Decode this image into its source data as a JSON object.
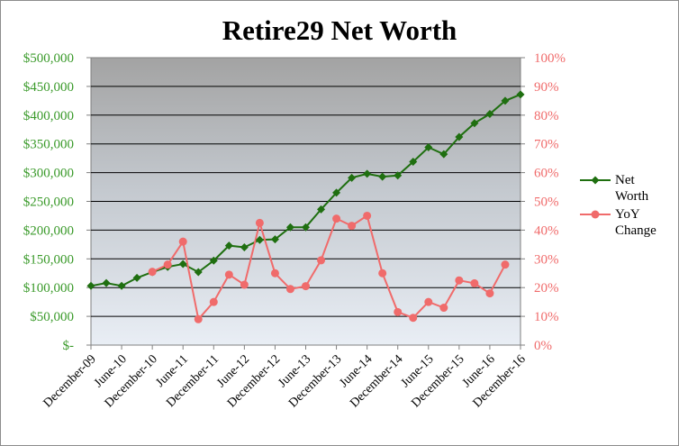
{
  "chart_data": {
    "type": "line",
    "title": "Retire29 Net Worth",
    "x_tick_labels": [
      "December-09",
      "June-10",
      "December-10",
      "June-11",
      "December-11",
      "June-12",
      "December-12",
      "June-13",
      "December-13",
      "June-14",
      "December-14",
      "June-15",
      "December-15",
      "June-16",
      "December-16"
    ],
    "y_left": {
      "ticks": [
        "$-",
        "$50,000",
        "$100,000",
        "$150,000",
        "$200,000",
        "$250,000",
        "$300,000",
        "$350,000",
        "$400,000",
        "$450,000",
        "$500,000"
      ],
      "ylim": [
        0,
        500000
      ]
    },
    "y_right": {
      "ticks": [
        "0%",
        "10%",
        "20%",
        "30%",
        "40%",
        "50%",
        "60%",
        "70%",
        "80%",
        "90%",
        "100%"
      ],
      "ylim": [
        0,
        1
      ]
    },
    "grid": true,
    "legend_position": "right",
    "series": [
      {
        "name": "Net Worth",
        "axis": "left",
        "color": "#1f6f10",
        "marker": "diamond",
        "values": [
          {
            "i": 0,
            "y": 103000
          },
          {
            "i": 1,
            "y": 108000
          },
          {
            "i": 2,
            "y": 103000
          },
          {
            "i": 3,
            "y": 117000
          },
          {
            "i": 4,
            "y": 127000
          },
          {
            "i": 5,
            "y": 136000
          },
          {
            "i": 6,
            "y": 141000
          },
          {
            "i": 7,
            "y": 127000
          },
          {
            "i": 8,
            "y": 147000
          },
          {
            "i": 9,
            "y": 173000
          },
          {
            "i": 10,
            "y": 170000
          },
          {
            "i": 11,
            "y": 183000
          },
          {
            "i": 12,
            "y": 184000
          },
          {
            "i": 13,
            "y": 205000
          },
          {
            "i": 14,
            "y": 205000
          },
          {
            "i": 15,
            "y": 236000
          },
          {
            "i": 16,
            "y": 265000
          },
          {
            "i": 17,
            "y": 291000
          },
          {
            "i": 18,
            "y": 298000
          },
          {
            "i": 19,
            "y": 293000
          },
          {
            "i": 20,
            "y": 295000
          },
          {
            "i": 21,
            "y": 319000
          },
          {
            "i": 22,
            "y": 344000
          },
          {
            "i": 23,
            "y": 332000
          },
          {
            "i": 24,
            "y": 362000
          },
          {
            "i": 25,
            "y": 386000
          },
          {
            "i": 26,
            "y": 402000
          },
          {
            "i": 27,
            "y": 425000
          },
          {
            "i": 28,
            "y": 436000
          }
        ]
      },
      {
        "name": "YoY Change",
        "axis": "right",
        "color": "#f06b6b",
        "marker": "circle",
        "values": [
          {
            "i": 4,
            "y": 0.255
          },
          {
            "i": 5,
            "y": 0.28
          },
          {
            "i": 6,
            "y": 0.36
          },
          {
            "i": 7,
            "y": 0.09
          },
          {
            "i": 8,
            "y": 0.15
          },
          {
            "i": 9,
            "y": 0.245
          },
          {
            "i": 10,
            "y": 0.21
          },
          {
            "i": 11,
            "y": 0.425
          },
          {
            "i": 12,
            "y": 0.25
          },
          {
            "i": 13,
            "y": 0.195
          },
          {
            "i": 14,
            "y": 0.205
          },
          {
            "i": 15,
            "y": 0.295
          },
          {
            "i": 16,
            "y": 0.44
          },
          {
            "i": 17,
            "y": 0.415
          },
          {
            "i": 18,
            "y": 0.45
          },
          {
            "i": 19,
            "y": 0.25
          },
          {
            "i": 20,
            "y": 0.115
          },
          {
            "i": 21,
            "y": 0.095
          },
          {
            "i": 22,
            "y": 0.15
          },
          {
            "i": 23,
            "y": 0.13
          },
          {
            "i": 24,
            "y": 0.225
          },
          {
            "i": 25,
            "y": 0.215
          },
          {
            "i": 26,
            "y": 0.18
          },
          {
            "i": 27,
            "y": 0.28
          }
        ]
      }
    ]
  }
}
